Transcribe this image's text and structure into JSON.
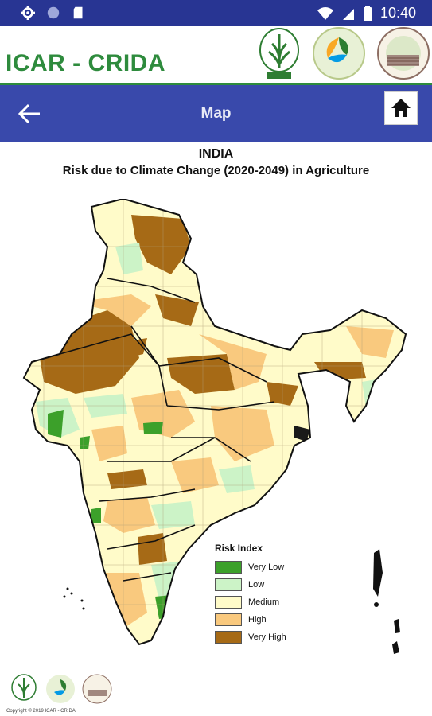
{
  "status_bar": {
    "time": "10:40"
  },
  "brand": {
    "title": "ICAR - CRIDA"
  },
  "app_bar": {
    "title": "Map"
  },
  "map": {
    "title": "INDIA",
    "subtitle": "Risk due to Climate Change (2020-2049) in Agriculture",
    "legend_title": "Risk Index",
    "legend": [
      {
        "label": "Very Low",
        "color": "#3ca02a"
      },
      {
        "label": "Low",
        "color": "#ccf3c7"
      },
      {
        "label": "Medium",
        "color": "#fffbc9"
      },
      {
        "label": "High",
        "color": "#f9c97e"
      },
      {
        "label": "Very High",
        "color": "#a66a16"
      }
    ]
  },
  "footer": {
    "copyright": "Copyright © 2019 ICAR - CRIDA"
  },
  "colors": {
    "status_bar": "#283593",
    "app_bar": "#3949ab",
    "brand_green": "#2e8b3d"
  }
}
